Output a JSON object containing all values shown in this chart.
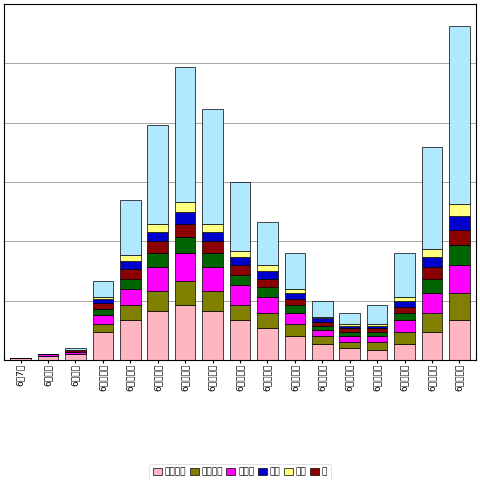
{
  "categories": [
    "6月7日",
    "6月８日",
    "6月９日",
    "6月１０日",
    "6月１１日",
    "6月１２日",
    "6月１３日",
    "6月１４日",
    "6月１５日",
    "6月１６日",
    "6月１７日",
    "6月１８日",
    "6月１９日",
    "6月２０日",
    "6月２１日",
    "6月２２日",
    "6月２３日"
  ],
  "series_order": [
    "pink",
    "olive",
    "magenta",
    "dark_green",
    "dark_red",
    "blue",
    "yellow",
    "cyan"
  ],
  "series": {
    "pink": [
      1,
      2,
      3,
      14,
      20,
      25,
      28,
      25,
      20,
      16,
      12,
      8,
      6,
      5,
      8,
      14,
      20
    ],
    "olive": [
      0,
      0,
      0,
      4,
      8,
      10,
      12,
      10,
      8,
      8,
      6,
      4,
      3,
      4,
      6,
      10,
      14
    ],
    "magenta": [
      0,
      1,
      1,
      5,
      8,
      12,
      14,
      12,
      10,
      8,
      6,
      3,
      3,
      3,
      6,
      10,
      14
    ],
    "dark_green": [
      0,
      0,
      0,
      3,
      5,
      7,
      8,
      7,
      5,
      5,
      4,
      2,
      2,
      2,
      4,
      7,
      10
    ],
    "dark_red": [
      0,
      0,
      1,
      3,
      5,
      6,
      7,
      6,
      5,
      4,
      3,
      2,
      2,
      2,
      3,
      6,
      8
    ],
    "blue": [
      0,
      0,
      0,
      2,
      4,
      5,
      6,
      5,
      4,
      4,
      3,
      2,
      1,
      1,
      3,
      5,
      7
    ],
    "yellow": [
      0,
      0,
      0,
      1,
      3,
      4,
      5,
      4,
      3,
      3,
      2,
      1,
      1,
      1,
      2,
      4,
      6
    ],
    "cyan": [
      0,
      0,
      1,
      8,
      28,
      50,
      68,
      58,
      35,
      22,
      18,
      8,
      6,
      10,
      22,
      52,
      90
    ]
  },
  "colors": {
    "pink": "#FFB6C1",
    "olive": "#808000",
    "magenta": "#FF00FF",
    "dark_green": "#006400",
    "dark_red": "#8B0000",
    "blue": "#0000CD",
    "yellow": "#FFFF80",
    "cyan": "#B0E8FF"
  },
  "legend": [
    {
      "label": "ブラジル",
      "color": "#FFB6C1"
    },
    {
      "label": "ベトナム",
      "color": "#808000"
    },
    {
      "label": "トルコ",
      "color": "#FF00FF"
    },
    {
      "label": "米国",
      "color": "#0000CD"
    },
    {
      "label": "中国",
      "color": "#FFFF80"
    },
    {
      "label": "・",
      "color": "#8B0000"
    }
  ],
  "ylim": [
    0,
    180
  ],
  "ytick_count": 7,
  "background_color": "#FFFFFF",
  "grid_color": "#999999",
  "bar_edgecolor": "#000000",
  "bar_linewidth": 0.5
}
